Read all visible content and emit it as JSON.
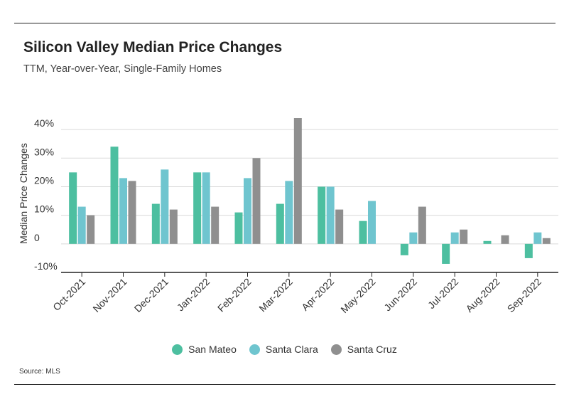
{
  "title": "Silicon Valley Median Price Changes",
  "subtitle": "TTM, Year-over-Year, Single-Family Homes",
  "source": "Source:  MLS",
  "chart_data": {
    "type": "bar",
    "title": "Silicon Valley Median Price Changes",
    "subtitle": "TTM, Year-over-Year, Single-Family Homes",
    "xlabel": "",
    "ylabel": "Median Price Changes",
    "ylim": [
      -10,
      44
    ],
    "yticks": [
      -10,
      0,
      10,
      20,
      30,
      40
    ],
    "ytick_labels": [
      "-10%",
      "0",
      "10%",
      "20%",
      "30%",
      "40%"
    ],
    "grid": true,
    "legend_position": "bottom",
    "categories": [
      "Oct-2021",
      "Nov-2021",
      "Dec-2021",
      "Jan-2022",
      "Feb-2022",
      "Mar-2022",
      "Apr-2022",
      "May-2022",
      "Jun-2022",
      "Jul-2022",
      "Aug-2022",
      "Sep-2022"
    ],
    "series": [
      {
        "name": "San Mateo",
        "color": "#4dbfa0",
        "values": [
          25,
          34,
          14,
          25,
          11,
          14,
          20,
          8,
          -4,
          -7,
          1,
          -5
        ]
      },
      {
        "name": "Santa Clara",
        "color": "#6fc5cf",
        "values": [
          13,
          23,
          26,
          25,
          23,
          22,
          20,
          15,
          4,
          4,
          0,
          4
        ]
      },
      {
        "name": "Santa Cruz",
        "color": "#8f8f8f",
        "values": [
          10,
          22,
          12,
          13,
          30,
          44,
          12,
          0,
          13,
          5,
          3,
          2
        ]
      }
    ]
  }
}
